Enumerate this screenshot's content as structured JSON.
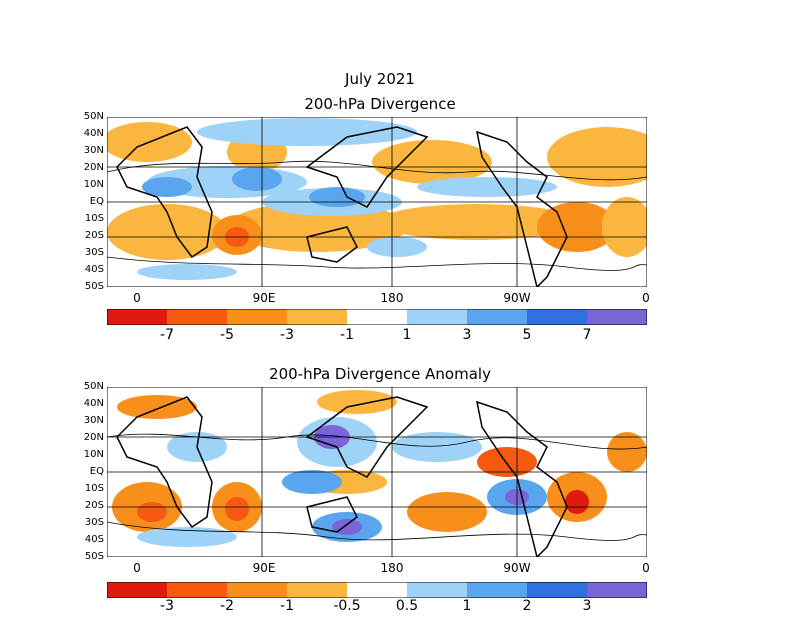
{
  "header": {
    "date": "July 2021"
  },
  "panel1": {
    "title": "200-hPa Divergence",
    "lat_labels": [
      "50N",
      "40N",
      "30N",
      "20N",
      "10N",
      "EQ",
      "10S",
      "20S",
      "30S",
      "40S",
      "50S"
    ],
    "lon_labels": [
      "0",
      "90E",
      "180",
      "90W",
      "0"
    ],
    "colorbar": {
      "colors": [
        "#e01a0c",
        "#f55a10",
        "#f88f1a",
        "#fbb640",
        "#ffffff",
        "#9fd2f7",
        "#5aa6ee",
        "#2f6fe0",
        "#7b63d8"
      ],
      "labels": [
        "-7",
        "-5",
        "-3",
        "-1",
        "1",
        "3",
        "5",
        "7"
      ]
    }
  },
  "panel2": {
    "title": "200-hPa Divergence Anomaly",
    "lat_labels": [
      "50N",
      "40N",
      "30N",
      "20N",
      "10N",
      "EQ",
      "10S",
      "20S",
      "30S",
      "40S",
      "50S"
    ],
    "lon_labels": [
      "0",
      "90E",
      "180",
      "90W",
      "0"
    ],
    "colorbar": {
      "colors": [
        "#e01a0c",
        "#f55a10",
        "#f88f1a",
        "#fbb640",
        "#ffffff",
        "#9fd2f7",
        "#5aa6ee",
        "#2f6fe0",
        "#7b63d8"
      ],
      "labels": [
        "-3",
        "-2",
        "-1",
        "-0.5",
        "0.5",
        "1",
        "2",
        "3"
      ]
    }
  }
}
